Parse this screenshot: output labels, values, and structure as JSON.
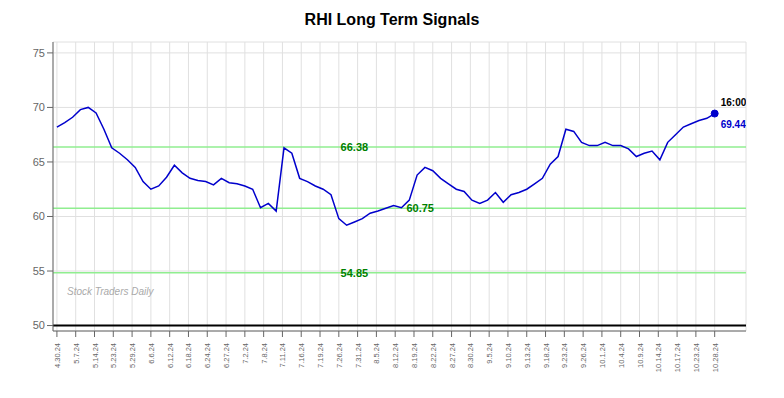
{
  "chart_data": {
    "type": "line",
    "title": "RHI Long Term Signals",
    "color": "#0000cc",
    "grid": true,
    "x": [
      0,
      1,
      2,
      3,
      4,
      5,
      6,
      7,
      8,
      9,
      10,
      11,
      12,
      13,
      14,
      15,
      16,
      17,
      18,
      19,
      20,
      21,
      22,
      23,
      24,
      25,
      26,
      27,
      28,
      29,
      30,
      31,
      32,
      33,
      34,
      35,
      36,
      37,
      38,
      39,
      40,
      41,
      42,
      43,
      44,
      45,
      46,
      47,
      48,
      49,
      50,
      51,
      52,
      53,
      54,
      55,
      56,
      57,
      58,
      59,
      60,
      61,
      62,
      63,
      64,
      65,
      66,
      67,
      68,
      69,
      70,
      71,
      72,
      73,
      74,
      75,
      76,
      77,
      78,
      79,
      80,
      81,
      82,
      83,
      84
    ],
    "values": [
      68.2,
      68.6,
      69.1,
      69.8,
      70.0,
      69.5,
      68.0,
      66.3,
      65.8,
      65.2,
      64.5,
      63.2,
      62.5,
      62.8,
      63.6,
      64.7,
      64.0,
      63.5,
      63.3,
      63.2,
      62.9,
      63.5,
      63.1,
      63.0,
      62.8,
      62.5,
      60.8,
      61.2,
      60.5,
      66.3,
      65.8,
      63.5,
      63.2,
      62.8,
      62.5,
      62.0,
      59.8,
      59.2,
      59.5,
      59.8,
      60.3,
      60.5,
      60.75,
      61.0,
      60.8,
      61.5,
      63.8,
      64.5,
      64.2,
      63.5,
      63.0,
      62.5,
      62.3,
      61.5,
      61.2,
      61.5,
      62.2,
      61.3,
      62.0,
      62.2,
      62.5,
      63.0,
      63.5,
      64.8,
      65.5,
      68.0,
      67.8,
      66.8,
      66.5,
      66.5,
      66.8,
      66.5,
      66.5,
      66.2,
      65.5,
      65.8,
      66.0,
      65.2,
      66.8,
      67.5,
      68.2,
      68.5,
      68.8,
      69.0,
      69.44
    ],
    "xlim": [
      -0.5,
      88
    ],
    "xticks": [
      {
        "value": 0,
        "label": "4.30.24"
      },
      {
        "value": 2.4,
        "label": "5.7.24"
      },
      {
        "value": 4.8,
        "label": "5.14.24"
      },
      {
        "value": 7.2,
        "label": "5.23.24"
      },
      {
        "value": 9.6,
        "label": "5.29.24"
      },
      {
        "value": 12,
        "label": "6.6.24"
      },
      {
        "value": 14.4,
        "label": "6.12.24"
      },
      {
        "value": 16.8,
        "label": "6.18.24"
      },
      {
        "value": 19.2,
        "label": "6.24.24"
      },
      {
        "value": 21.6,
        "label": "6.27.24"
      },
      {
        "value": 24,
        "label": "7.2.24"
      },
      {
        "value": 26.4,
        "label": "7.8.24"
      },
      {
        "value": 28.8,
        "label": "7.11.24"
      },
      {
        "value": 31.2,
        "label": "7.16.24"
      },
      {
        "value": 33.6,
        "label": "7.19.24"
      },
      {
        "value": 36,
        "label": "7.26.24"
      },
      {
        "value": 38.4,
        "label": "7.31.24"
      },
      {
        "value": 40.8,
        "label": "8.5.24"
      },
      {
        "value": 43.2,
        "label": "8.12.24"
      },
      {
        "value": 45.6,
        "label": "8.19.24"
      },
      {
        "value": 48,
        "label": "8.22.24"
      },
      {
        "value": 50.4,
        "label": "8.27.24"
      },
      {
        "value": 52.8,
        "label": "8.30.24"
      },
      {
        "value": 55.2,
        "label": "9.5.24"
      },
      {
        "value": 57.6,
        "label": "9.10.24"
      },
      {
        "value": 60,
        "label": "9.13.24"
      },
      {
        "value": 62.4,
        "label": "9.18.24"
      },
      {
        "value": 64.8,
        "label": "9.23.24"
      },
      {
        "value": 67.2,
        "label": "9.26.24"
      },
      {
        "value": 69.6,
        "label": "10.1.24"
      },
      {
        "value": 72,
        "label": "10.4.24"
      },
      {
        "value": 74.4,
        "label": "10.9.24"
      },
      {
        "value": 76.8,
        "label": "10.14.24"
      },
      {
        "value": 79.2,
        "label": "10.17.24"
      },
      {
        "value": 81.6,
        "label": "10.23.24"
      },
      {
        "value": 84,
        "label": "10.28.24"
      }
    ],
    "ylim": [
      49.5,
      76
    ],
    "yticks": [
      50,
      55,
      60,
      65,
      70,
      75
    ],
    "annotations": {
      "hlines": [
        {
          "y": 66.38,
          "color": "#90EE90",
          "text": "66.38",
          "text_color": "#008000"
        },
        {
          "y": 60.75,
          "color": "#90EE90",
          "text": "60.75",
          "text_color": "#008000"
        },
        {
          "y": 54.85,
          "color": "#90EE90",
          "text": "54.85",
          "text_color": "#008000"
        },
        {
          "y": 50,
          "color": "#000000"
        }
      ],
      "last_point": {
        "text": "16:00",
        "text_color": "#000000",
        "value_label": "69.44",
        "value_color": "#0000cc"
      },
      "watermark": {
        "text": "Stock Traders Daily",
        "color": "#aaaaaa"
      }
    }
  }
}
